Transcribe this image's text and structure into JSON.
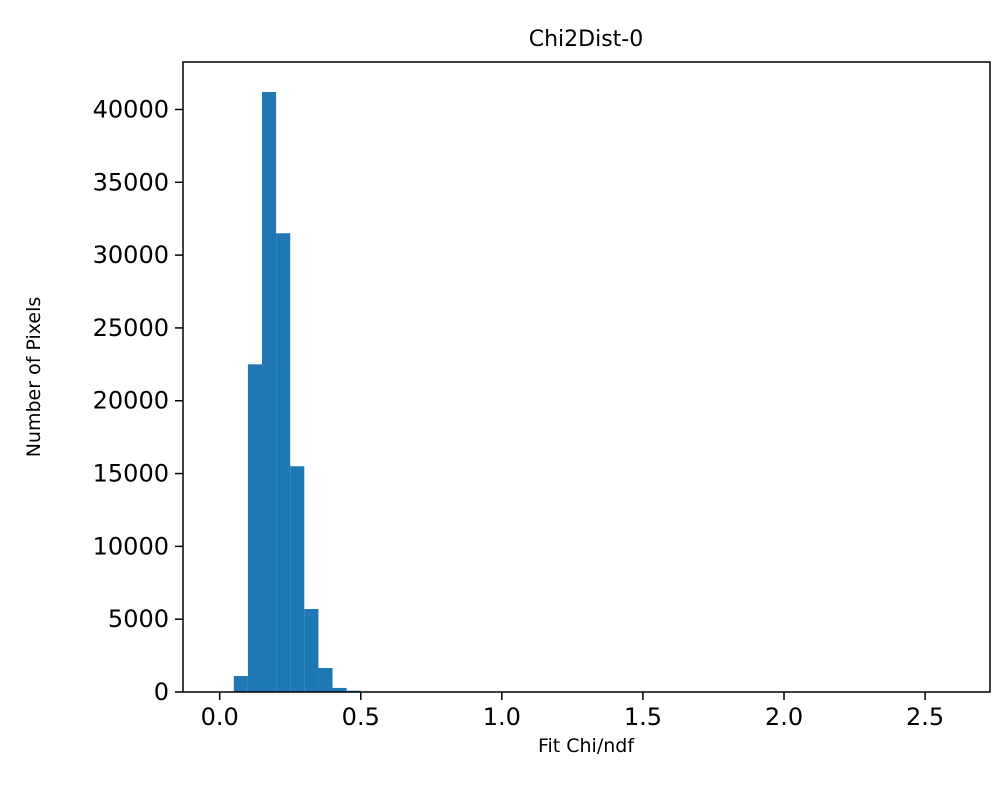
{
  "figure": {
    "background_color": "#ffffff"
  },
  "chart_data": {
    "type": "bar",
    "subtype": "histogram",
    "title": "Chi2Dist-0",
    "xlabel": "Fit Chi/ndf",
    "ylabel": "Number of Pixels",
    "bar_color": "#1f77b4",
    "grid": false,
    "legend": "none",
    "bin_start": 0.0,
    "bin_width": 0.05,
    "counts": [
      0,
      1100,
      22500,
      41200,
      31500,
      15500,
      5700,
      1650,
      280,
      90,
      35,
      15,
      8,
      5,
      3,
      2,
      2,
      1,
      1,
      1,
      0,
      1,
      0,
      0,
      1,
      0,
      0,
      1,
      0,
      0,
      0,
      1,
      0,
      0,
      0,
      0,
      1,
      0,
      0,
      0,
      0,
      0,
      1,
      0,
      0,
      0,
      0,
      0,
      0,
      0,
      0,
      1
    ],
    "xlim": [
      -0.13,
      2.73
    ],
    "ylim": [
      0,
      43260
    ],
    "x_ticks": [
      {
        "value": 0.0,
        "label": "0.0"
      },
      {
        "value": 0.5,
        "label": "0.5"
      },
      {
        "value": 1.0,
        "label": "1.0"
      },
      {
        "value": 1.5,
        "label": "1.5"
      },
      {
        "value": 2.0,
        "label": "2.0"
      },
      {
        "value": 2.5,
        "label": "2.5"
      }
    ],
    "y_ticks": [
      {
        "value": 0,
        "label": "0"
      },
      {
        "value": 5000,
        "label": "5000"
      },
      {
        "value": 10000,
        "label": "10000"
      },
      {
        "value": 15000,
        "label": "15000"
      },
      {
        "value": 20000,
        "label": "20000"
      },
      {
        "value": 25000,
        "label": "25000"
      },
      {
        "value": 30000,
        "label": "30000"
      },
      {
        "value": 35000,
        "label": "35000"
      },
      {
        "value": 40000,
        "label": "40000"
      }
    ]
  }
}
